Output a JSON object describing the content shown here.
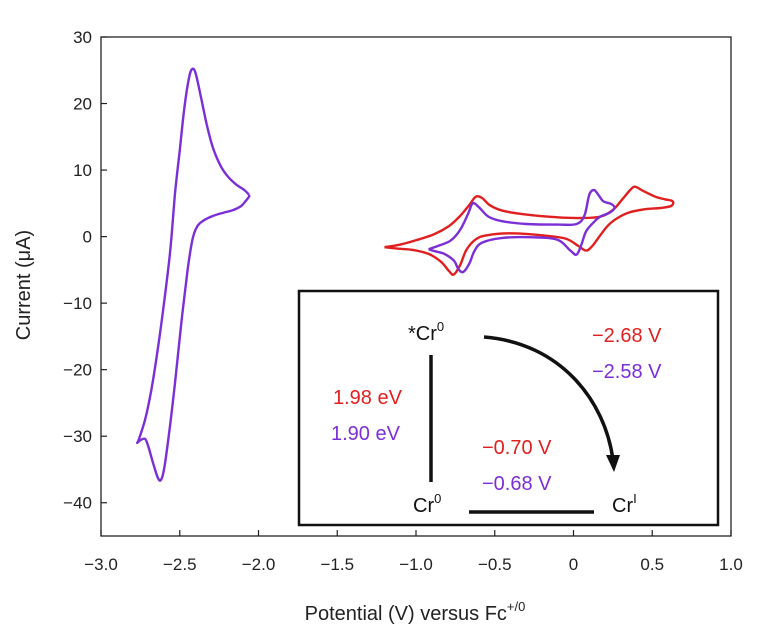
{
  "chart_data": {
    "type": "line",
    "xlabel": "Potential (V) versus Fc",
    "xlabel_superscript": "+/0",
    "ylabel": "Current (μA)",
    "xlim": [
      -3.0,
      1.0
    ],
    "ylim": [
      -45,
      30
    ],
    "xticks": [
      "−3.0",
      "−2.5",
      "−2.0",
      "−1.5",
      "−1.0",
      "−0.5",
      "0",
      "0.5",
      "1.0"
    ],
    "xtick_values": [
      -3.0,
      -2.5,
      -2.0,
      -1.5,
      -1.0,
      -0.5,
      0,
      0.5,
      1.0
    ],
    "yticks": [
      "30",
      "20",
      "10",
      "0",
      "−10",
      "−20",
      "−30",
      "−40"
    ],
    "ytick_values": [
      30,
      20,
      10,
      0,
      -10,
      -20,
      -30,
      -40
    ],
    "grid": false,
    "series": [
      {
        "color": "#7b2fd6",
        "points": [
          [
            -2.06,
            6.3
          ],
          [
            -2.09,
            7.0
          ],
          [
            -2.14,
            7.8
          ],
          [
            -2.19,
            8.9
          ],
          [
            -2.24,
            10.6
          ],
          [
            -2.29,
            13.4
          ],
          [
            -2.33,
            17.0
          ],
          [
            -2.37,
            21.5
          ],
          [
            -2.4,
            24.6
          ],
          [
            -2.42,
            25.2
          ],
          [
            -2.44,
            24.0
          ],
          [
            -2.47,
            19.5
          ],
          [
            -2.5,
            13.0
          ],
          [
            -2.53,
            6.5
          ],
          [
            -2.56,
            -2.0
          ],
          [
            -2.6,
            -10.0
          ],
          [
            -2.64,
            -17.0
          ],
          [
            -2.68,
            -23.0
          ],
          [
            -2.72,
            -27.5
          ],
          [
            -2.76,
            -30.5
          ],
          [
            -2.77,
            -31.0
          ],
          [
            -2.75,
            -30.6
          ],
          [
            -2.72,
            -30.4
          ],
          [
            -2.7,
            -31.5
          ],
          [
            -2.67,
            -34.0
          ],
          [
            -2.64,
            -36.2
          ],
          [
            -2.62,
            -36.6
          ],
          [
            -2.6,
            -35.0
          ],
          [
            -2.57,
            -30.0
          ],
          [
            -2.53,
            -22.0
          ],
          [
            -2.49,
            -13.0
          ],
          [
            -2.45,
            -5.0
          ],
          [
            -2.42,
            -0.5
          ],
          [
            -2.39,
            1.5
          ],
          [
            -2.35,
            2.4
          ],
          [
            -2.29,
            3.1
          ],
          [
            -2.22,
            3.6
          ],
          [
            -2.16,
            4.0
          ],
          [
            -2.11,
            4.6
          ],
          [
            -2.08,
            5.4
          ],
          [
            -2.06,
            6.0
          ],
          [
            -2.06,
            6.3
          ]
        ]
      },
      {
        "color": "#e02020",
        "points": [
          [
            -1.2,
            -1.6
          ],
          [
            -1.1,
            -1.2
          ],
          [
            -0.98,
            -0.4
          ],
          [
            -0.88,
            0.4
          ],
          [
            -0.79,
            1.6
          ],
          [
            -0.72,
            3.1
          ],
          [
            -0.66,
            4.8
          ],
          [
            -0.62,
            6.0
          ],
          [
            -0.58,
            5.8
          ],
          [
            -0.53,
            4.7
          ],
          [
            -0.45,
            3.9
          ],
          [
            -0.3,
            3.3
          ],
          [
            -0.1,
            2.9
          ],
          [
            0.05,
            2.8
          ],
          [
            0.17,
            3.0
          ],
          [
            0.25,
            4.0
          ],
          [
            0.31,
            5.6
          ],
          [
            0.36,
            7.0
          ],
          [
            0.39,
            7.5
          ],
          [
            0.44,
            6.9
          ],
          [
            0.52,
            6.0
          ],
          [
            0.58,
            5.6
          ],
          [
            0.63,
            5.3
          ],
          [
            0.62,
            4.6
          ],
          [
            0.55,
            4.3
          ],
          [
            0.45,
            4.1
          ],
          [
            0.35,
            3.6
          ],
          [
            0.28,
            2.8
          ],
          [
            0.22,
            1.7
          ],
          [
            0.17,
            0.2
          ],
          [
            0.12,
            -1.4
          ],
          [
            0.08,
            -2.1
          ],
          [
            0.03,
            -1.4
          ],
          [
            -0.05,
            -0.3
          ],
          [
            -0.2,
            0.2
          ],
          [
            -0.4,
            0.5
          ],
          [
            -0.55,
            0.2
          ],
          [
            -0.62,
            -0.4
          ],
          [
            -0.68,
            -2.0
          ],
          [
            -0.72,
            -4.3
          ],
          [
            -0.76,
            -5.7
          ],
          [
            -0.79,
            -5.2
          ],
          [
            -0.84,
            -3.8
          ],
          [
            -0.92,
            -2.6
          ],
          [
            -1.02,
            -2.0
          ],
          [
            -1.12,
            -1.8
          ],
          [
            -1.2,
            -1.6
          ]
        ]
      },
      {
        "color": "#7b2fd6",
        "points": [
          [
            -0.92,
            -1.9
          ],
          [
            -0.86,
            -1.4
          ],
          [
            -0.78,
            -0.6
          ],
          [
            -0.72,
            1.0
          ],
          [
            -0.67,
            3.4
          ],
          [
            -0.64,
            5.0
          ],
          [
            -0.6,
            4.4
          ],
          [
            -0.54,
            3.0
          ],
          [
            -0.45,
            2.3
          ],
          [
            -0.3,
            1.9
          ],
          [
            -0.1,
            1.8
          ],
          [
            0.02,
            1.9
          ],
          [
            0.07,
            3.2
          ],
          [
            0.1,
            6.3
          ],
          [
            0.13,
            7.0
          ],
          [
            0.16,
            6.2
          ],
          [
            0.19,
            5.3
          ],
          [
            0.24,
            4.9
          ],
          [
            0.26,
            4.3
          ],
          [
            0.23,
            3.6
          ],
          [
            0.17,
            3.0
          ],
          [
            0.13,
            2.2
          ],
          [
            0.08,
            0.8
          ],
          [
            0.05,
            -1.2
          ],
          [
            0.02,
            -2.7
          ],
          [
            -0.02,
            -2.1
          ],
          [
            -0.1,
            -0.5
          ],
          [
            -0.25,
            -0.1
          ],
          [
            -0.45,
            -0.2
          ],
          [
            -0.58,
            -0.9
          ],
          [
            -0.63,
            -2.2
          ],
          [
            -0.66,
            -4.0
          ],
          [
            -0.7,
            -5.3
          ],
          [
            -0.73,
            -4.9
          ],
          [
            -0.76,
            -3.6
          ],
          [
            -0.82,
            -2.6
          ],
          [
            -0.88,
            -2.2
          ],
          [
            -0.92,
            -1.9
          ]
        ]
      }
    ]
  },
  "inset": {
    "excited_state": "*Cr",
    "excited_state_sup": "0",
    "ground_state": "Cr",
    "ground_state_sup": "0",
    "reduced_state": "Cr",
    "reduced_state_sup": "I",
    "energy_red": "1.98 eV",
    "energy_purple": "1.90 eV",
    "excited_potential_red": "−2.68 V",
    "excited_potential_purple": "−2.58 V",
    "ground_potential_red": "−0.70 V",
    "ground_potential_purple": "−0.68 V"
  },
  "colors": {
    "red": "#e02020",
    "purple": "#7b2fd6",
    "axis": "#222222"
  }
}
